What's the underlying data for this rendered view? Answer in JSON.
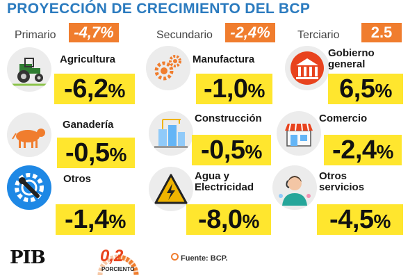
{
  "title": "PROYECCIÓN DE CRECIMIENTO DEL BCP",
  "sectors": [
    {
      "label": "Primario",
      "value": "-4,7%"
    },
    {
      "label": "Secundario",
      "value": "-2,4%"
    },
    {
      "label": "Terciario",
      "value": "2.5"
    }
  ],
  "items": [
    {
      "name": "Agricultura",
      "value": "-6,2",
      "unit": "%",
      "icon": "tractor-icon"
    },
    {
      "name": "Manufactura",
      "value": "-1,0",
      "unit": "%",
      "icon": "gears-icon"
    },
    {
      "name": "Gobierno general",
      "name_l1": "Gobierno",
      "name_l2": "general",
      "value": "6,5",
      "unit": "%",
      "icon": "government-building-icon"
    },
    {
      "name": "Ganadería",
      "value": "-0,5",
      "unit": "%",
      "icon": "cow-icon"
    },
    {
      "name": "Construcción",
      "value": "-0,5",
      "unit": "%",
      "icon": "construction-icon"
    },
    {
      "name": "Comercio",
      "value": "-2,4",
      "unit": "%",
      "icon": "storefront-icon"
    },
    {
      "name": "Otros",
      "value": "-1,4",
      "unit": "%",
      "icon": "wrench-gear-icon"
    },
    {
      "name": "Agua y Electricidad",
      "name_l1": "Agua y",
      "name_l2": "Electricidad",
      "value": "-8,0",
      "unit": "%",
      "icon": "electricity-warning-icon"
    },
    {
      "name": "Otros servicios",
      "name_l1": "Otros",
      "name_l2": "servicios",
      "value": "-4,5",
      "unit": "%",
      "icon": "service-worker-icon"
    }
  ],
  "pib": {
    "label": "PIB",
    "value": "0,2",
    "unit": "PORCIENTO"
  },
  "source": "Fuente: BCP.",
  "colors": {
    "title": "#2b7bbf",
    "badge": "#f07d2e",
    "highlight": "#ffe62e",
    "gauge": "#f07d2e",
    "pib_value": "#e8431e"
  }
}
